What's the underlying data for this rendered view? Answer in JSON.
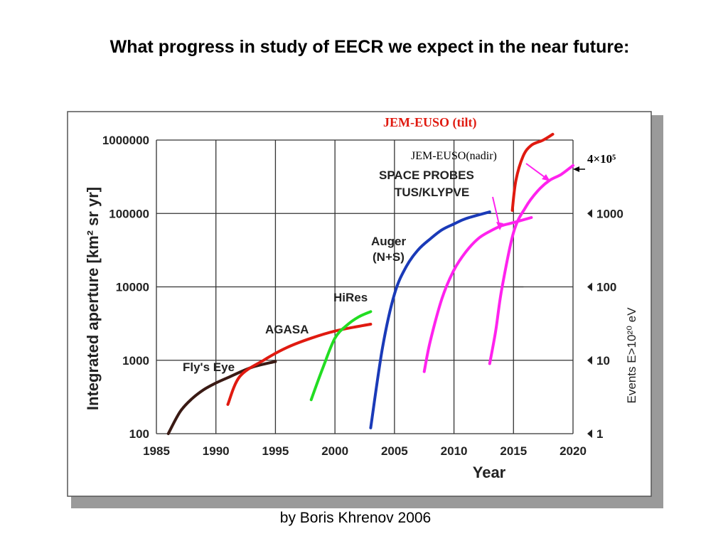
{
  "slide": {
    "title": "What progress in study of EECR we expect in the near future:",
    "credit": "by Boris Khrenov 2006"
  },
  "chart_data": {
    "type": "line",
    "xlabel": "Year",
    "ylabel": "Integrated aperture [km² sr yr]",
    "right_axis_label": "Events E>10²⁰ eV",
    "x_ticks": [
      "1985",
      "1990",
      "1995",
      "2000",
      "2005",
      "2010",
      "2015",
      "2020"
    ],
    "y_ticks": [
      "100",
      "1000",
      "10000",
      "100000",
      "1000000"
    ],
    "right_ticks": [
      "1",
      "10",
      "100",
      "1000"
    ],
    "xlim": [
      1985,
      2020
    ],
    "ylim": [
      100,
      1000000
    ],
    "y_scale": "log",
    "grid": true,
    "series": [
      {
        "name": "Fly's Eye",
        "color": "#3a1a14",
        "points": [
          [
            1986.0,
            100
          ],
          [
            1987.0,
            200
          ],
          [
            1988.0,
            300
          ],
          [
            1989.0,
            400
          ],
          [
            1990.0,
            490
          ],
          [
            1991.0,
            580
          ],
          [
            1993.0,
            800
          ],
          [
            1995.0,
            960
          ]
        ]
      },
      {
        "name": "AGASA",
        "color": "#e01a10",
        "points": [
          [
            1991.0,
            250
          ],
          [
            1992.0,
            600
          ],
          [
            1994.0,
            1000
          ],
          [
            1996.0,
            1500
          ],
          [
            1998.0,
            2000
          ],
          [
            2000.0,
            2500
          ],
          [
            2002.0,
            2900
          ],
          [
            2003.0,
            3100
          ]
        ]
      },
      {
        "name": "HiRes",
        "color": "#22dd22",
        "points": [
          [
            1998.0,
            290
          ],
          [
            1999.0,
            800
          ],
          [
            2000.0,
            2000
          ],
          [
            2001.0,
            3000
          ],
          [
            2002.0,
            3900
          ],
          [
            2003.0,
            4600
          ]
        ]
      },
      {
        "name": "Auger\n(N+S)",
        "color": "#1a3ab8",
        "points": [
          [
            2003.0,
            120
          ],
          [
            2004.0,
            1500
          ],
          [
            2005.0,
            8000
          ],
          [
            2006.0,
            19000
          ],
          [
            2007.0,
            32000
          ],
          [
            2008.0,
            45000
          ],
          [
            2009.0,
            60000
          ],
          [
            2010.0,
            72000
          ],
          [
            2011.0,
            85000
          ],
          [
            2013.0,
            105000
          ]
        ]
      },
      {
        "name": "SPACE PROBES\nTUS/KLYPVE",
        "color": "#ff22ee",
        "points": [
          [
            2007.5,
            700
          ],
          [
            2008.0,
            1800
          ],
          [
            2009.0,
            7000
          ],
          [
            2010.0,
            17000
          ],
          [
            2011.0,
            30000
          ],
          [
            2012.0,
            45000
          ],
          [
            2013.0,
            57000
          ],
          [
            2014.0,
            68000
          ],
          [
            2015.0,
            75000
          ],
          [
            2016.5,
            88000
          ]
        ]
      },
      {
        "name": "JEM-EUSO(nadir)",
        "color": "#ff22ee",
        "points": [
          [
            2013.0,
            900
          ],
          [
            2013.5,
            2500
          ],
          [
            2014.0,
            9000
          ],
          [
            2015.0,
            55000
          ],
          [
            2016.0,
            120000
          ],
          [
            2017.0,
            200000
          ],
          [
            2018.0,
            280000
          ],
          [
            2019.0,
            340000
          ],
          [
            2020.0,
            450000
          ]
        ]
      },
      {
        "name": "JEM-EUSO   (tilt)",
        "color": "#e01a10",
        "points": [
          [
            2014.9,
            110000
          ],
          [
            2015.2,
            280000
          ],
          [
            2015.8,
            600000
          ],
          [
            2016.5,
            850000
          ],
          [
            2017.5,
            1000000
          ],
          [
            2018.3,
            1200000
          ]
        ]
      }
    ],
    "annotations": {
      "fly_eye": "Fly's Eye",
      "agasa": "AGASA",
      "hires": "HiRes",
      "auger_line1": "Auger",
      "auger_line2": "(N+S)",
      "space_line1": "SPACE PROBES",
      "space_line2": "TUS/KLYPVE",
      "jem_nadir": "JEM-EUSO(nadir)",
      "jem_tilt": "JEM-EUSO   (tilt)",
      "events_mark": "4×10⁵"
    }
  }
}
